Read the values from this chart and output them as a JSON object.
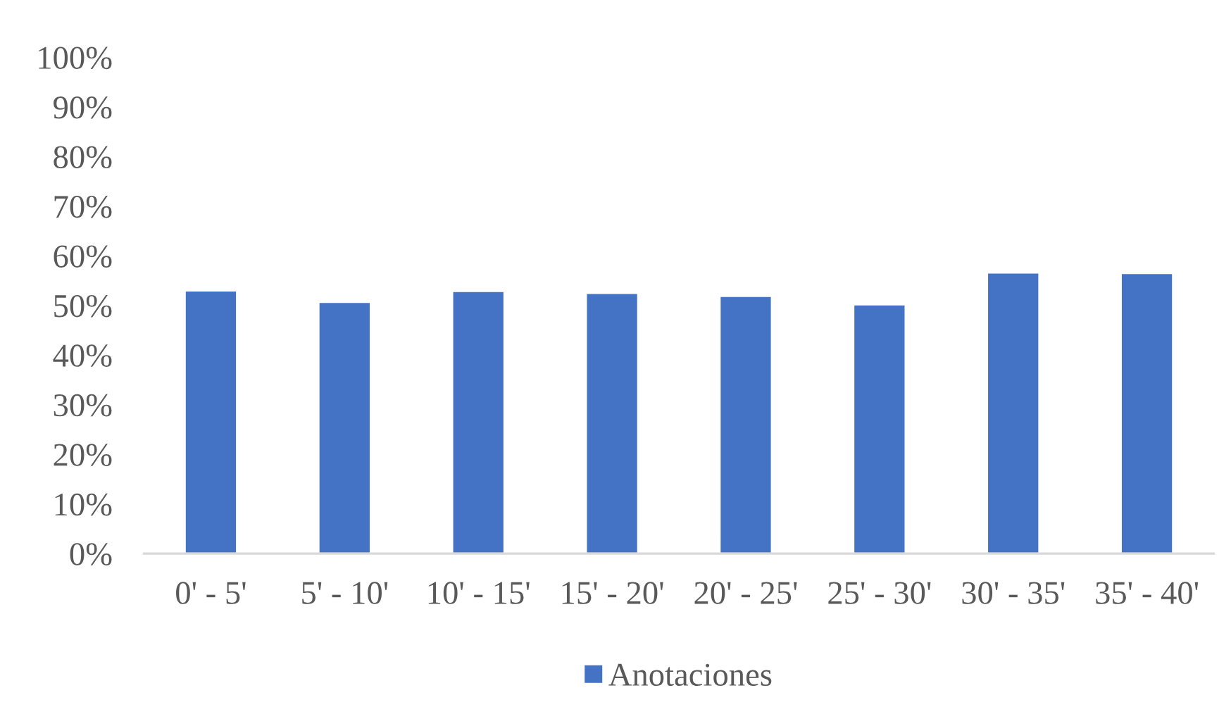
{
  "chart_data": {
    "type": "bar",
    "categories": [
      "0' - 5'",
      "5' - 10'",
      "10' - 15'",
      "15' - 20'",
      "20' - 25'",
      "25' - 30'",
      "30' - 35'",
      "35' - 40'"
    ],
    "series": [
      {
        "name": "Anotaciones",
        "color": "#4472c4",
        "values": [
          53.0,
          50.7,
          52.9,
          52.5,
          51.9,
          50.2,
          56.6,
          56.5
        ]
      }
    ],
    "ylim": [
      0,
      100
    ],
    "yticks": [
      {
        "value": 0,
        "label": "0%"
      },
      {
        "value": 10,
        "label": "10%"
      },
      {
        "value": 20,
        "label": "20%"
      },
      {
        "value": 30,
        "label": "30%"
      },
      {
        "value": 40,
        "label": "40%"
      },
      {
        "value": 50,
        "label": "50%"
      },
      {
        "value": 60,
        "label": "60%"
      },
      {
        "value": 70,
        "label": "70%"
      },
      {
        "value": 80,
        "label": "80%"
      },
      {
        "value": 90,
        "label": "90%"
      },
      {
        "value": 100,
        "label": "100%"
      }
    ],
    "legend": "bottom"
  }
}
